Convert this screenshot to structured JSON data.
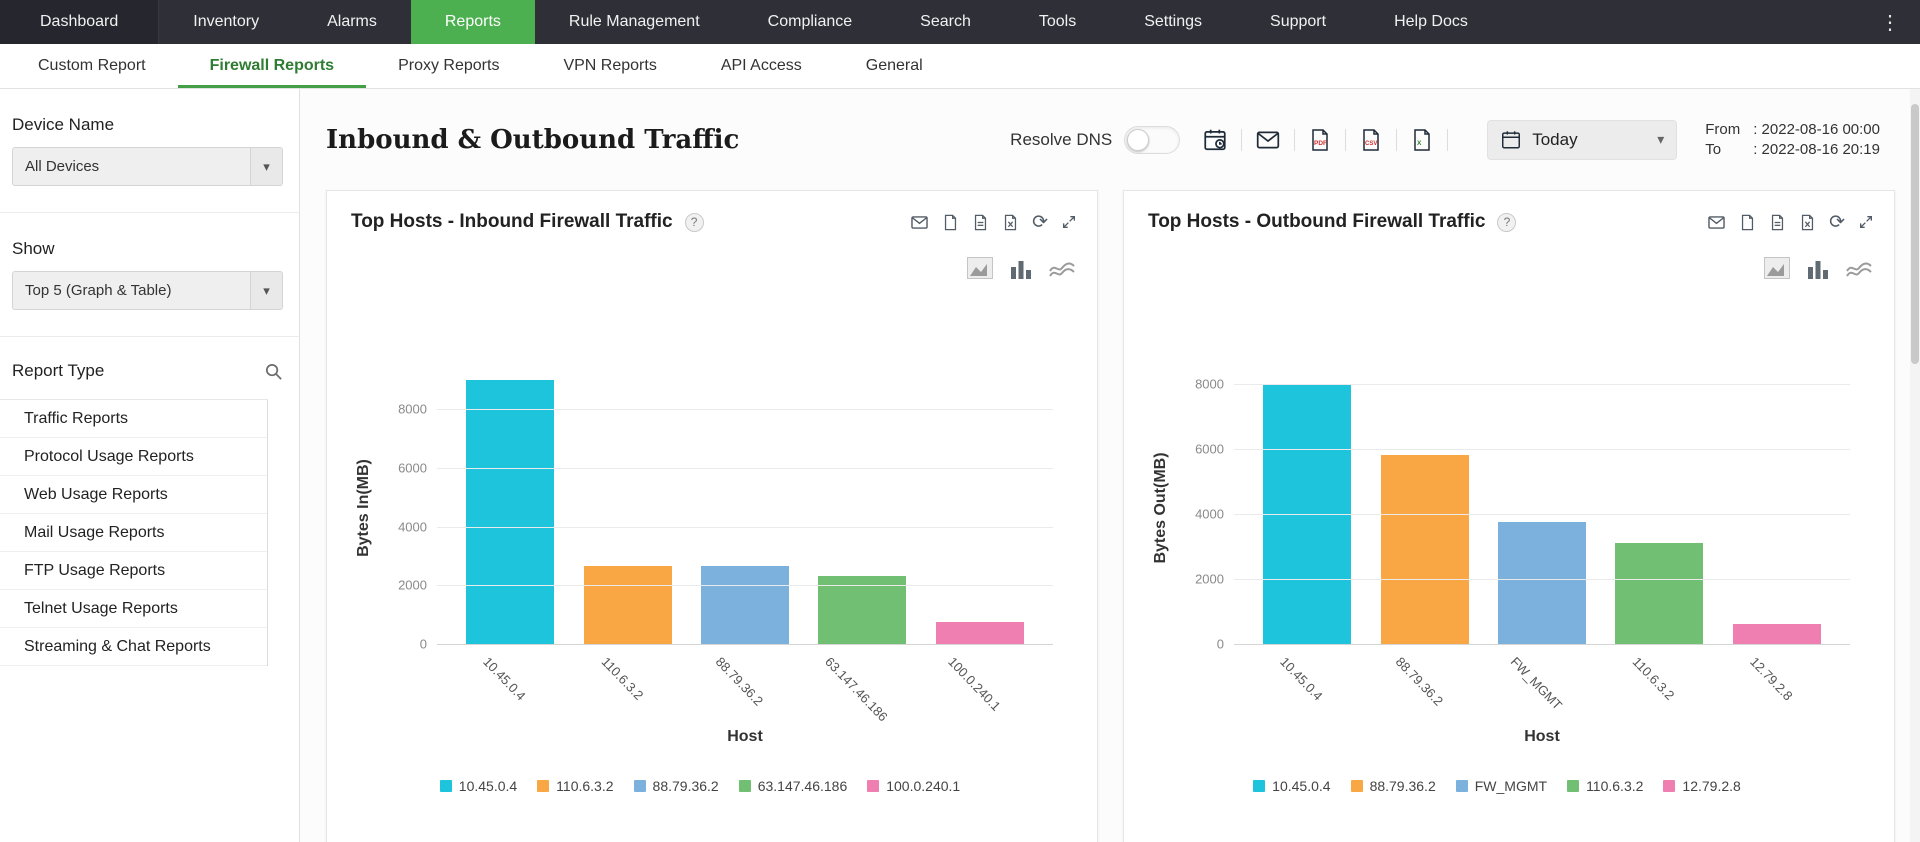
{
  "nav": {
    "items": [
      "Dashboard",
      "Inventory",
      "Alarms",
      "Reports",
      "Rule Management",
      "Compliance",
      "Search",
      "Tools",
      "Settings",
      "Support",
      "Help Docs"
    ],
    "kebab": "⋮"
  },
  "tabs": [
    "Custom Report",
    "Firewall Reports",
    "Proxy Reports",
    "VPN Reports",
    "API Access",
    "General"
  ],
  "sidebar": {
    "device_name_label": "Device Name",
    "device_select_value": "All Devices",
    "show_label": "Show",
    "show_select_value": "Top 5 (Graph & Table)",
    "report_type_label": "Report Type",
    "report_types": [
      "Traffic Reports",
      "Protocol Usage Reports",
      "Web Usage Reports",
      "Mail Usage Reports",
      "FTP Usage Reports",
      "Telnet Usage Reports",
      "Streaming & Chat Reports"
    ]
  },
  "header": {
    "title": "Inbound & Outbound Traffic",
    "resolve_dns_label": "Resolve DNS",
    "period_value": "Today",
    "from_label": "From",
    "from_value": ": 2022-08-16 00:00",
    "to_label": "To",
    "to_value": ": 2022-08-16 20:19"
  },
  "icons": {
    "caret": "▾",
    "help": "?",
    "refresh": "⟳"
  },
  "chart_data": [
    {
      "type": "bar",
      "title": "Top Hosts - Inbound Firewall Traffic",
      "categories": [
        "10.45.0.4",
        "110.6.3.2",
        "88.79.36.2",
        "63.147.46.186",
        "100.0.240.1"
      ],
      "values": [
        9000,
        2650,
        2650,
        2300,
        750
      ],
      "colors": [
        "#1dc4dc",
        "#f9a744",
        "#7cb1dd",
        "#70bf73",
        "#ef7fb0"
      ],
      "xlabel": "Host",
      "ylabel": "Bytes In(MB)",
      "yticks": [
        0,
        2000,
        4000,
        6000,
        8000
      ],
      "ymax": 9300,
      "legend_position": "bottom",
      "grid": true
    },
    {
      "type": "bar",
      "title": "Top Hosts - Outbound Firewall Traffic",
      "categories": [
        "10.45.0.4",
        "88.79.36.2",
        "FW_MGMT",
        "110.6.3.2",
        "12.79.2.8"
      ],
      "values": [
        8000,
        5800,
        3750,
        3100,
        600
      ],
      "colors": [
        "#1dc4dc",
        "#f9a744",
        "#7cb1dd",
        "#70bf73",
        "#ef7fb0"
      ],
      "xlabel": "Host",
      "ylabel": "Bytes Out(MB)",
      "yticks": [
        0,
        2000,
        4000,
        6000,
        8000
      ],
      "ymax": 8400,
      "legend_position": "bottom",
      "grid": true
    }
  ]
}
